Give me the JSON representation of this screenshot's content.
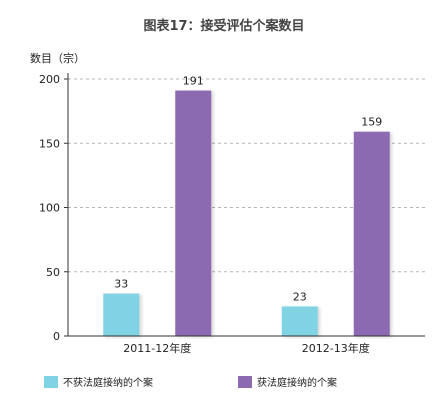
{
  "chart_data": {
    "type": "bar",
    "title": "图表17：接受评估个案数目",
    "ylabel": "数目（宗）",
    "xlabel": "",
    "categories": [
      "2011-12年度",
      "2012-13年度"
    ],
    "series": [
      {
        "name": "不获法庭接纳的个案",
        "color": "#7fd3e3",
        "values": [
          33,
          23
        ]
      },
      {
        "name": "获法庭接纳的个案",
        "color": "#8c6ab2",
        "values": [
          191,
          159
        ]
      }
    ],
    "ylim": [
      0,
      200
    ],
    "yticks": [
      0,
      50,
      100,
      150,
      200
    ],
    "grid": true,
    "legend_position": "bottom-left"
  }
}
